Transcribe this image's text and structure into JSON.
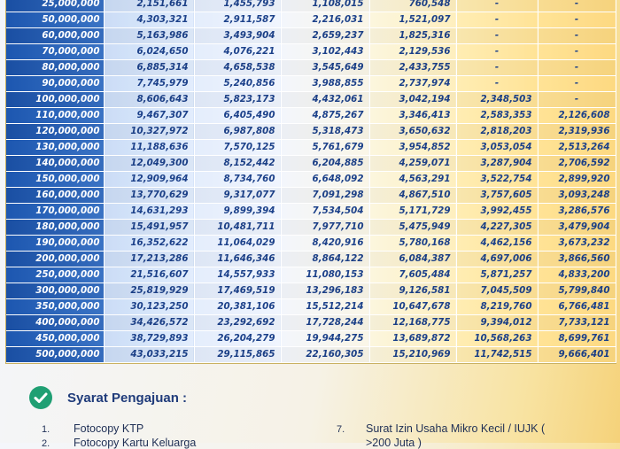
{
  "table": {
    "rows": [
      [
        "25,000,000",
        "2,151,661",
        "1,455,793",
        "1,108,015",
        "760,548",
        "-",
        "-"
      ],
      [
        "50,000,000",
        "4,303,321",
        "2,911,587",
        "2,216,031",
        "1,521,097",
        "-",
        "-"
      ],
      [
        "60,000,000",
        "5,163,986",
        "3,493,904",
        "2,659,237",
        "1,825,316",
        "-",
        "-"
      ],
      [
        "70,000,000",
        "6,024,650",
        "4,076,221",
        "3,102,443",
        "2,129,536",
        "-",
        "-"
      ],
      [
        "80,000,000",
        "6,885,314",
        "4,658,538",
        "3,545,649",
        "2,433,755",
        "-",
        "-"
      ],
      [
        "90,000,000",
        "7,745,979",
        "5,240,856",
        "3,988,855",
        "2,737,974",
        "-",
        "-"
      ],
      [
        "100,000,000",
        "8,606,643",
        "5,823,173",
        "4,432,061",
        "3,042,194",
        "2,348,503",
        "-"
      ],
      [
        "110,000,000",
        "9,467,307",
        "6,405,490",
        "4,875,267",
        "3,346,413",
        "2,583,353",
        "2,126,608"
      ],
      [
        "120,000,000",
        "10,327,972",
        "6,987,808",
        "5,318,473",
        "3,650,632",
        "2,818,203",
        "2,319,936"
      ],
      [
        "130,000,000",
        "11,188,636",
        "7,570,125",
        "5,761,679",
        "3,954,852",
        "3,053,054",
        "2,513,264"
      ],
      [
        "140,000,000",
        "12,049,300",
        "8,152,442",
        "6,204,885",
        "4,259,071",
        "3,287,904",
        "2,706,592"
      ],
      [
        "150,000,000",
        "12,909,964",
        "8,734,760",
        "6,648,092",
        "4,563,291",
        "3,522,754",
        "2,899,920"
      ],
      [
        "160,000,000",
        "13,770,629",
        "9,317,077",
        "7,091,298",
        "4,867,510",
        "3,757,605",
        "3,093,248"
      ],
      [
        "170,000,000",
        "14,631,293",
        "9,899,394",
        "7,534,504",
        "5,171,729",
        "3,992,455",
        "3,286,576"
      ],
      [
        "180,000,000",
        "15,491,957",
        "10,481,711",
        "7,977,710",
        "5,475,949",
        "4,227,305",
        "3,479,904"
      ],
      [
        "190,000,000",
        "16,352,622",
        "11,064,029",
        "8,420,916",
        "5,780,168",
        "4,462,156",
        "3,673,232"
      ],
      [
        "200,000,000",
        "17,213,286",
        "11,646,346",
        "8,864,122",
        "6,084,387",
        "4,697,006",
        "3,866,560"
      ],
      [
        "250,000,000",
        "21,516,607",
        "14,557,933",
        "11,080,153",
        "7,605,484",
        "5,871,257",
        "4,833,200"
      ],
      [
        "300,000,000",
        "25,819,929",
        "17,469,519",
        "13,296,183",
        "9,126,581",
        "7,045,509",
        "5,799,840"
      ],
      [
        "350,000,000",
        "30,123,250",
        "20,381,106",
        "15,512,214",
        "10,647,678",
        "8,219,760",
        "6,766,481"
      ],
      [
        "400,000,000",
        "34,426,572",
        "23,292,692",
        "17,728,244",
        "12,168,775",
        "9,394,012",
        "7,733,121"
      ],
      [
        "450,000,000",
        "38,729,893",
        "26,204,279",
        "19,944,275",
        "13,689,872",
        "10,568,263",
        "8,699,761"
      ],
      [
        "500,000,000",
        "43,033,215",
        "29,115,865",
        "22,160,305",
        "15,210,969",
        "11,742,515",
        "9,666,401"
      ]
    ]
  },
  "requirements": {
    "title": "Syarat Pengajuan :",
    "icon": "check-circle-icon",
    "items": [
      {
        "num": "1.",
        "text": "Fotocopy KTP"
      },
      {
        "num": "2.",
        "text": "Fotocopy Kartu Keluarga"
      },
      {
        "num": "7.",
        "text": "Surat Izin Usaha Mikro Kecil / IUJK ("
      },
      {
        "num": "",
        "text": ">200 Juta )"
      }
    ]
  }
}
